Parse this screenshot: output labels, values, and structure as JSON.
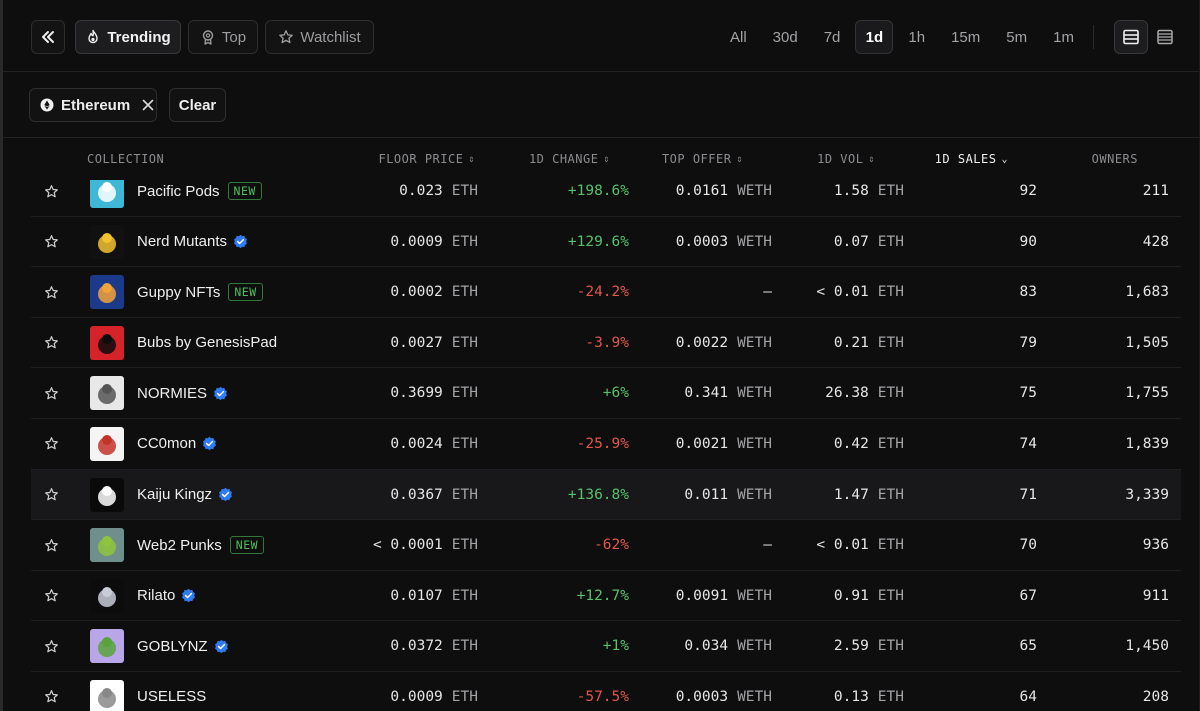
{
  "toolbar": {
    "collapse_icon": "double-chevron-left-icon",
    "tabs": [
      {
        "label": "Trending",
        "icon": "flame-icon",
        "active": true
      },
      {
        "label": "Top",
        "icon": "award-icon",
        "active": false
      },
      {
        "label": "Watchlist",
        "icon": "star-icon",
        "active": false
      }
    ],
    "timeframes": [
      "All",
      "30d",
      "7d",
      "1d",
      "1h",
      "15m",
      "5m",
      "1m"
    ],
    "active_timeframe": "1d",
    "view_icons": [
      "table-view-icon",
      "list-view-icon"
    ]
  },
  "filters": {
    "chain_label": "Ethereum",
    "clear_label": "Clear"
  },
  "table": {
    "headers": {
      "collection": "COLLECTION",
      "floor_price": "FLOOR PRICE",
      "change": "1D CHANGE",
      "top_offer": "TOP OFFER",
      "volume": "1D VOL",
      "sales": "1D SALES",
      "owners": "OWNERS"
    },
    "sorted_column": "sales",
    "rows": [
      {
        "name": "Pacific Pods",
        "badge": "NEW",
        "verified": false,
        "floor": "0.023",
        "floor_unit": "ETH",
        "change": "+198.6%",
        "change_dir": "pos",
        "offer": "0.0161",
        "offer_unit": "WETH",
        "vol": "1.58",
        "vol_unit": "ETH",
        "sales": "92",
        "owners": "211",
        "thumb_color": "#3fb8d8",
        "thumb_accent": "#ffffff"
      },
      {
        "name": "Nerd Mutants",
        "badge": "",
        "verified": true,
        "floor": "0.0009",
        "floor_unit": "ETH",
        "change": "+129.6%",
        "change_dir": "pos",
        "offer": "0.0003",
        "offer_unit": "WETH",
        "vol": "0.07",
        "vol_unit": "ETH",
        "sales": "90",
        "owners": "428",
        "thumb_color": "#111111",
        "thumb_accent": "#f2c230"
      },
      {
        "name": "Guppy NFTs",
        "badge": "NEW",
        "verified": false,
        "floor": "0.0002",
        "floor_unit": "ETH",
        "change": "-24.2%",
        "change_dir": "neg",
        "offer": "–",
        "offer_unit": "",
        "vol": "< 0.01",
        "vol_unit": "ETH",
        "sales": "83",
        "owners": "1,683",
        "thumb_color": "#1c3a8a",
        "thumb_accent": "#f2a33a"
      },
      {
        "name": "Bubs by GenesisPad",
        "badge": "",
        "verified": false,
        "floor": "0.0027",
        "floor_unit": "ETH",
        "change": "-3.9%",
        "change_dir": "neg",
        "offer": "0.0022",
        "offer_unit": "WETH",
        "vol": "0.21",
        "vol_unit": "ETH",
        "sales": "79",
        "owners": "1,505",
        "thumb_color": "#d6232a",
        "thumb_accent": "#0c0c0c"
      },
      {
        "name": "NORMIES",
        "badge": "",
        "verified": true,
        "floor": "0.3699",
        "floor_unit": "ETH",
        "change": "+6%",
        "change_dir": "pos",
        "offer": "0.341",
        "offer_unit": "WETH",
        "vol": "26.38",
        "vol_unit": "ETH",
        "sales": "75",
        "owners": "1,755",
        "thumb_color": "#e8e8e8",
        "thumb_accent": "#555555"
      },
      {
        "name": "CC0mon",
        "badge": "",
        "verified": true,
        "floor": "0.0024",
        "floor_unit": "ETH",
        "change": "-25.9%",
        "change_dir": "neg",
        "offer": "0.0021",
        "offer_unit": "WETH",
        "vol": "0.42",
        "vol_unit": "ETH",
        "sales": "74",
        "owners": "1,839",
        "thumb_color": "#f4f4f4",
        "thumb_accent": "#c2332a"
      },
      {
        "name": "Kaiju Kingz",
        "badge": "",
        "verified": true,
        "floor": "0.0367",
        "floor_unit": "ETH",
        "change": "+136.8%",
        "change_dir": "pos",
        "offer": "0.011",
        "offer_unit": "WETH",
        "vol": "1.47",
        "vol_unit": "ETH",
        "sales": "71",
        "owners": "3,339",
        "thumb_color": "#0a0a0a",
        "thumb_accent": "#ffffff"
      },
      {
        "name": "Web2 Punks",
        "badge": "NEW",
        "verified": false,
        "floor": "< 0.0001",
        "floor_unit": "ETH",
        "change": "-62%",
        "change_dir": "neg",
        "offer": "–",
        "offer_unit": "",
        "vol": "< 0.01",
        "vol_unit": "ETH",
        "sales": "70",
        "owners": "936",
        "thumb_color": "#6f8f8c",
        "thumb_accent": "#8fc43c"
      },
      {
        "name": "Rilato",
        "badge": "",
        "verified": true,
        "floor": "0.0107",
        "floor_unit": "ETH",
        "change": "+12.7%",
        "change_dir": "pos",
        "offer": "0.0091",
        "offer_unit": "WETH",
        "vol": "0.91",
        "vol_unit": "ETH",
        "sales": "67",
        "owners": "911",
        "thumb_color": "#0c0c0c",
        "thumb_accent": "#c9ccd8"
      },
      {
        "name": "GOBLYNZ",
        "badge": "",
        "verified": true,
        "floor": "0.0372",
        "floor_unit": "ETH",
        "change": "+1%",
        "change_dir": "pos",
        "offer": "0.034",
        "offer_unit": "WETH",
        "vol": "2.59",
        "vol_unit": "ETH",
        "sales": "65",
        "owners": "1,450",
        "thumb_color": "#b9a6e8",
        "thumb_accent": "#5aa33a"
      },
      {
        "name": "USELESS",
        "badge": "",
        "verified": false,
        "floor": "0.0009",
        "floor_unit": "ETH",
        "change": "-57.5%",
        "change_dir": "neg",
        "offer": "0.0003",
        "offer_unit": "WETH",
        "vol": "0.13",
        "vol_unit": "ETH",
        "sales": "64",
        "owners": "208",
        "thumb_color": "#ffffff",
        "thumb_accent": "#888888"
      }
    ]
  }
}
